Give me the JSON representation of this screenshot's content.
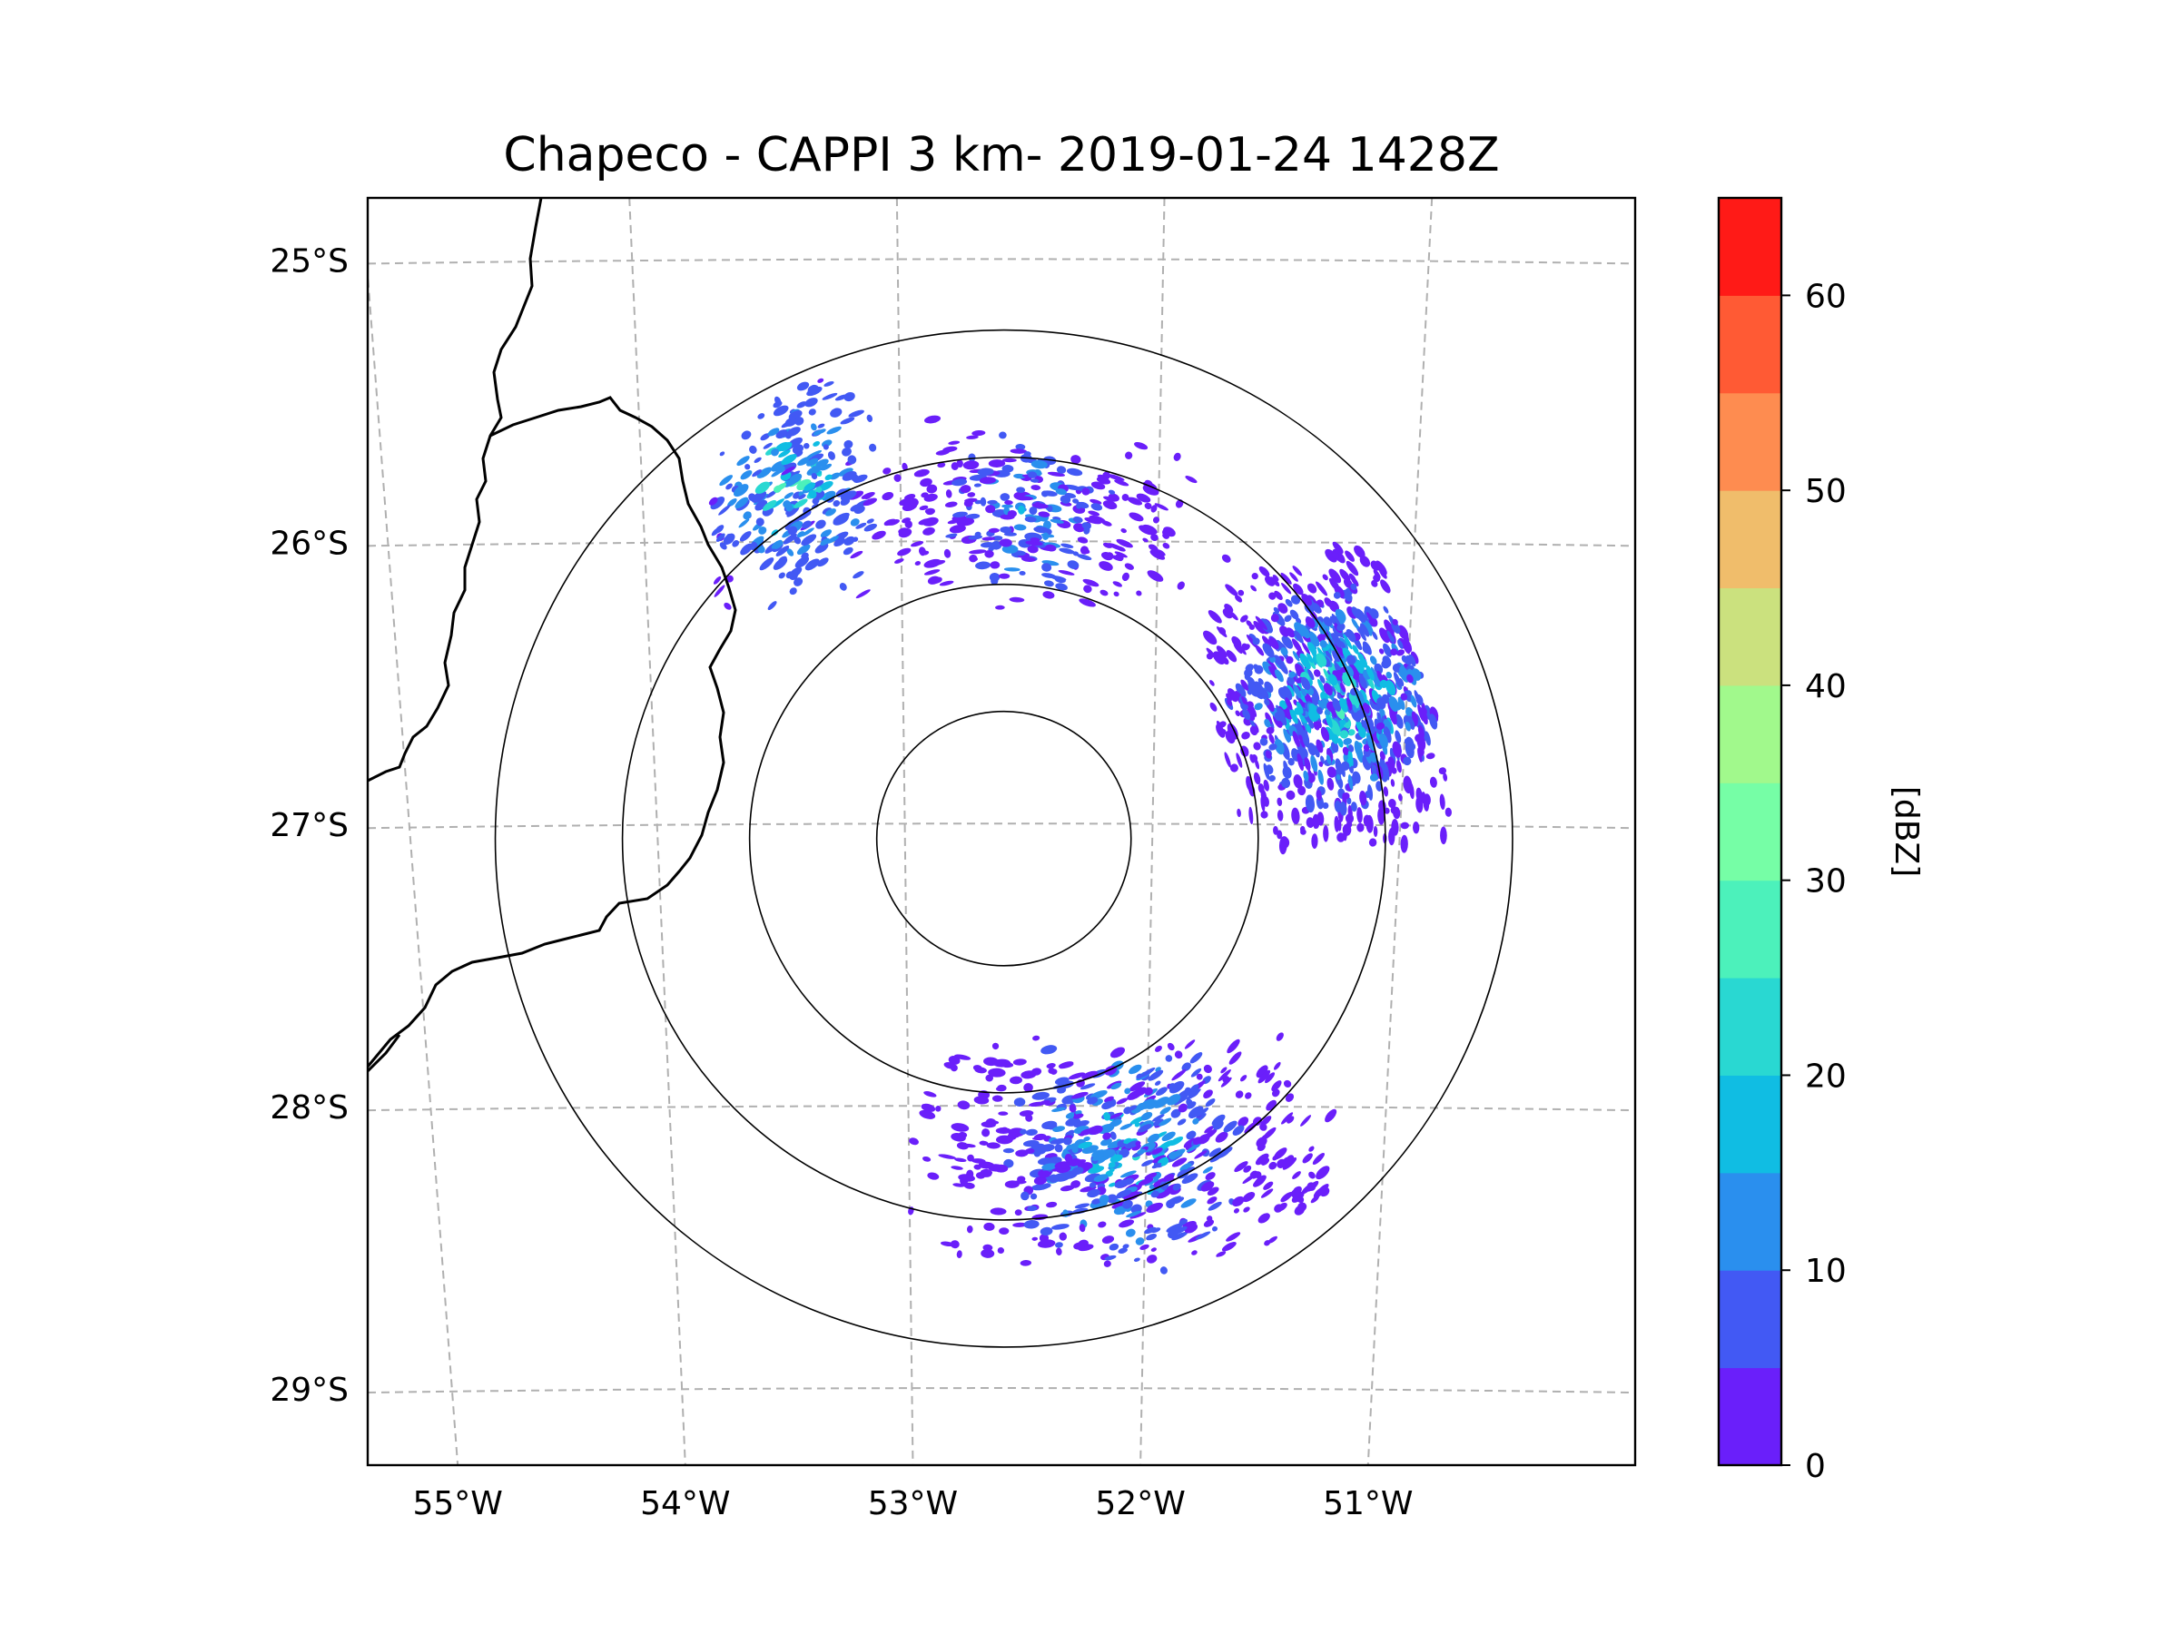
{
  "chart_data": {
    "type": "heatmap",
    "subtype": "radar-ppi-map",
    "title": "Chapeco - CAPPI 3 km- 2019-01-24 1428Z",
    "radar": "Chapeco",
    "product": "CAPPI 3 km",
    "datetime": "2019-01-24 1428Z",
    "radar_center": {
      "lon": -52.6,
      "lat": -27.05
    },
    "range_rings_km": [
      50,
      100,
      150,
      200
    ],
    "x_axis": {
      "label": "",
      "ticks": [
        -55,
        -54,
        -53,
        -52,
        -51
      ],
      "tick_labels": [
        "55°W",
        "54°W",
        "53°W",
        "52°W",
        "51°W"
      ],
      "range": [
        -55.17,
        -50.05
      ]
    },
    "y_axis": {
      "label": "",
      "ticks": [
        -25,
        -26,
        -27,
        -28,
        -29
      ],
      "tick_labels": [
        "25°S",
        "26°S",
        "27°S",
        "28°S",
        "29°S"
      ],
      "range": [
        -29.27,
        -24.78
      ]
    },
    "gridlines": "dashed",
    "colorbar": {
      "label": "[dBZ]",
      "range": [
        0,
        65
      ],
      "bounds": [
        0,
        5,
        10,
        15,
        20,
        25,
        30,
        35,
        40,
        45,
        50,
        55,
        60,
        65
      ],
      "colors": [
        "#6a1ffa",
        "#4259f4",
        "#2a8fee",
        "#10bde3",
        "#29d8d2",
        "#4cf1bb",
        "#76fea6",
        "#a1f98c",
        "#cbe17e",
        "#f0bd6b",
        "#fe8c50",
        "#ff5a34",
        "#ff1a17"
      ],
      "ticks": [
        0,
        10,
        20,
        30,
        40,
        50,
        60
      ],
      "tick_labels": [
        "0",
        "10",
        "20",
        "30",
        "40",
        "50",
        "60"
      ]
    },
    "echo_regions": [
      {
        "name": "northeast-sector",
        "lon": -51.25,
        "lat": -26.55,
        "dbz_max": 25,
        "dbz_typical": 5
      },
      {
        "name": "northwest-cluster",
        "lon": -53.45,
        "lat": -25.8,
        "dbz_max": 25,
        "dbz_typical": 15
      },
      {
        "name": "south-southeast-sector",
        "lon": -52.1,
        "lat": -28.15,
        "dbz_max": 20,
        "dbz_typical": 5
      },
      {
        "name": "north-scattered",
        "lon": -52.5,
        "lat": -25.9,
        "dbz_max": 15,
        "dbz_typical": 5
      }
    ]
  }
}
